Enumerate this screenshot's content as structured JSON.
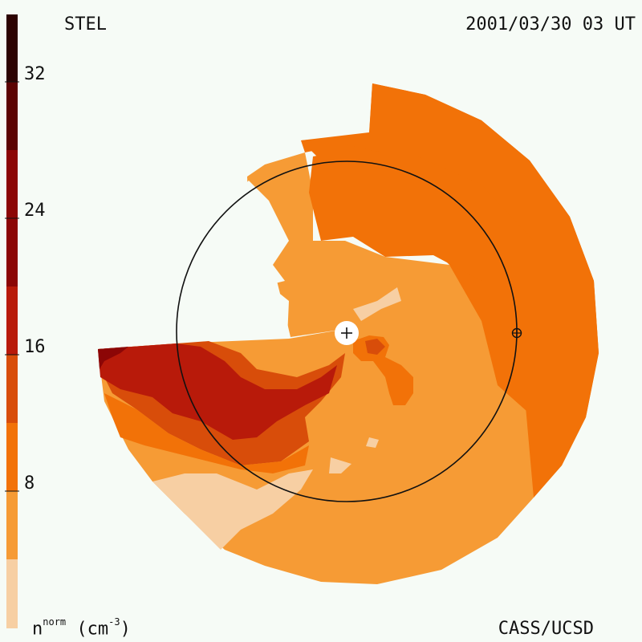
{
  "header": {
    "source_label": "STEL",
    "timestamp": "2001/03/30 03 UT"
  },
  "footer": {
    "credit": "CASS/UCSD",
    "units_prefix": "n",
    "units_sup": "norm",
    "units_suffix": " (cm",
    "units_exp": "-3",
    "units_close": ")"
  },
  "colorbar": {
    "ticks": [
      "32",
      "24",
      "16",
      "8"
    ],
    "colors": [
      "#f7cfa3",
      "#f69b35",
      "#f27208",
      "#d84d0a",
      "#b81a0a",
      "#8c0606",
      "#5c0303",
      "#2d0303"
    ]
  },
  "map": {
    "background_color": "#f6fbf6",
    "center_symbol": "sun-marker",
    "earth_symbol": "earth-marker"
  }
}
